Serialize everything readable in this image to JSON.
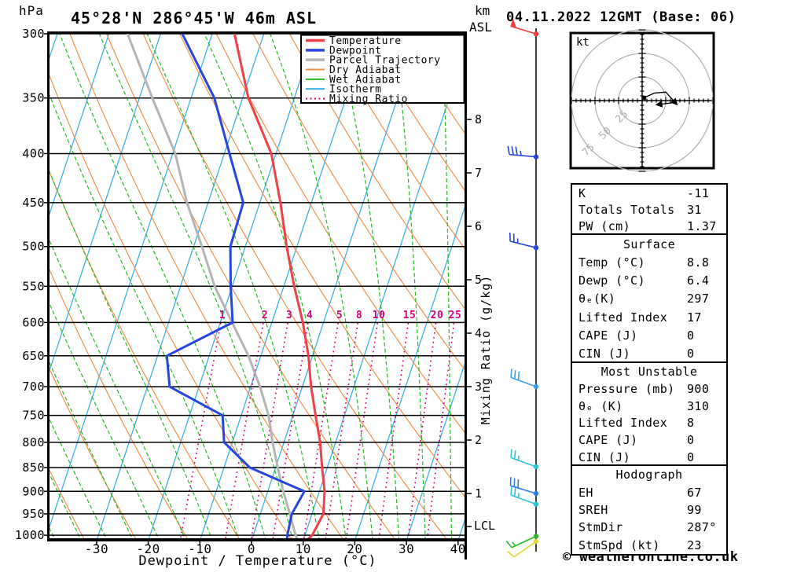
{
  "header": {
    "title": "45°28'N 286°45'W 46m ASL",
    "datetime": "04.11.2022 12GMT (Base: 06)"
  },
  "labels": {
    "hpa_unit": "hPa",
    "km_unit": "km",
    "asl_unit": "ASL",
    "x_axis": "Dewpoint / Temperature (°C)",
    "mixing_axis": "Mixing Ratio (g/kg)",
    "lcl": "LCL"
  },
  "footer": {
    "copyright": "© weatheronline.co.uk"
  },
  "legend": {
    "items": [
      {
        "label": "Temperature",
        "color": "#f04048",
        "style": "thick"
      },
      {
        "label": "Dewpoint",
        "color": "#2745e0",
        "style": "thick"
      },
      {
        "label": "Parcel Trajectory",
        "color": "#b4b4b4",
        "style": "thick"
      },
      {
        "label": "Dry Adiabat",
        "color": "#f09048",
        "style": "thin"
      },
      {
        "label": "Wet Adiabat",
        "color": "#22bb22",
        "style": "thin"
      },
      {
        "label": "Isotherm",
        "color": "#3cb0e8",
        "style": "thin"
      },
      {
        "label": "Mixing Ratio",
        "color": "#d6007e",
        "style": "dotted"
      }
    ]
  },
  "skewt": {
    "pressure_ticks": [
      300,
      350,
      400,
      450,
      500,
      550,
      600,
      650,
      700,
      750,
      800,
      850,
      900,
      950,
      1000
    ],
    "temp_ticks": [
      -30,
      -20,
      -10,
      0,
      10,
      20,
      30,
      40
    ],
    "km_ticks": [
      8,
      7,
      6,
      5,
      4,
      3,
      2,
      1
    ],
    "mixing_ratio_values": [
      1,
      2,
      3,
      4,
      5,
      8,
      10,
      15,
      20,
      25
    ],
    "isotherm_step_c": 10,
    "dry_adiabat_theta_k": {
      "min": 240,
      "max": 450,
      "step": 10
    },
    "wet_adiabat_thetaw_c": {
      "min": -40,
      "max": 40,
      "step": 5
    },
    "colors": {
      "isotherm": "#3cb0e8",
      "dry_adiabat": "#f09048",
      "wet_adiabat": "#22bb22",
      "mixing_ratio": "#d6007e",
      "grid": "#000000"
    }
  },
  "chart_data": {
    "type": "skewt-sounding",
    "title": "45°28'N 286°45'W 46m ASL",
    "xlabel": "Dewpoint / Temperature (°C)",
    "ylabel": "hPa",
    "xlim": [
      -40,
      42
    ],
    "ylim": [
      1010,
      300
    ],
    "pressure_hpa": [
      300,
      350,
      400,
      450,
      500,
      550,
      600,
      650,
      700,
      750,
      800,
      850,
      900,
      950,
      1000,
      1010
    ],
    "series": [
      {
        "name": "Temperature",
        "color": "#f04048",
        "values_c": [
          -35.7,
          -28.9,
          -20.9,
          -16.0,
          -12.0,
          -8.0,
          -4.0,
          -0.8,
          1.7,
          4.4,
          7.0,
          9.0,
          11.0,
          12.2,
          11.4,
          10.8
        ]
      },
      {
        "name": "Dewpoint",
        "color": "#2745e0",
        "values_c": [
          -45.8,
          -35.5,
          -29.0,
          -23.2,
          -22.9,
          -20.3,
          -17.6,
          -28.2,
          -25.7,
          -13.6,
          -11.6,
          -5.0,
          7.1,
          6.1,
          6.6,
          6.8
        ]
      },
      {
        "name": "Parcel Trajectory",
        "color": "#b4b4b4",
        "values_c": [
          -56.4,
          -47.5,
          -39.5,
          -34.1,
          -28.4,
          -23.4,
          -17.7,
          -12.4,
          -8.2,
          -4.7,
          -2.2,
          0.4,
          3.0,
          5.7,
          8.2,
          8.8
        ]
      }
    ],
    "lcl_height_km": 0.35,
    "winds": [
      {
        "km": 9.6,
        "dir_deg": 287,
        "speed_kt": 50,
        "color": "#f04040"
      },
      {
        "km": 7.3,
        "dir_deg": 275,
        "speed_kt": 35,
        "color": "#2745e0"
      },
      {
        "km": 5.6,
        "dir_deg": 284,
        "speed_kt": 25,
        "color": "#2745e0"
      },
      {
        "km": 3.0,
        "dir_deg": 290,
        "speed_kt": 30,
        "color": "#3ba0f0"
      },
      {
        "km": 1.5,
        "dir_deg": 290,
        "speed_kt": 25,
        "color": "#29c5d6"
      },
      {
        "km": 1.0,
        "dir_deg": 287,
        "speed_kt": 30,
        "color": "#2e7fe8"
      },
      {
        "km": 0.8,
        "dir_deg": 290,
        "speed_kt": 25,
        "color": "#29c5d6"
      },
      {
        "km": 0.2,
        "dir_deg": 245,
        "speed_kt": 15,
        "color": "#2eb82e"
      },
      {
        "km": 0.1,
        "dir_deg": 235,
        "speed_kt": 10,
        "color": "#e0d832"
      }
    ]
  },
  "hodograph": {
    "unit_label": "kt",
    "ring_labels": [
      "25",
      "50",
      "75"
    ],
    "ring_step_kt": 25,
    "ring_color": "#b0b0b0",
    "trace_kt": [
      [
        2,
        3
      ],
      [
        13,
        8
      ],
      [
        25,
        9
      ],
      [
        35,
        -2
      ],
      [
        18,
        -4
      ]
    ]
  },
  "tables": [
    {
      "header": null,
      "rows": [
        [
          "K",
          "-11"
        ],
        [
          "Totals Totals",
          "31"
        ],
        [
          "PW (cm)",
          "1.37"
        ]
      ]
    },
    {
      "header": "Surface",
      "rows": [
        [
          "Temp (°C)",
          "8.8"
        ],
        [
          "Dewp (°C)",
          "6.4"
        ],
        [
          "θₑ(K)",
          "297"
        ],
        [
          "Lifted Index",
          "17"
        ],
        [
          "CAPE (J)",
          "0"
        ],
        [
          "CIN (J)",
          "0"
        ]
      ]
    },
    {
      "header": "Most Unstable",
      "rows": [
        [
          "Pressure (mb)",
          "900"
        ],
        [
          "θₑ (K)",
          "310"
        ],
        [
          "Lifted Index",
          "8"
        ],
        [
          "CAPE (J)",
          "0"
        ],
        [
          "CIN (J)",
          "0"
        ]
      ]
    },
    {
      "header": "Hodograph",
      "rows": [
        [
          "EH",
          "67"
        ],
        [
          "SREH",
          "99"
        ],
        [
          "StmDir",
          "287°"
        ],
        [
          "StmSpd (kt)",
          "23"
        ]
      ]
    }
  ]
}
